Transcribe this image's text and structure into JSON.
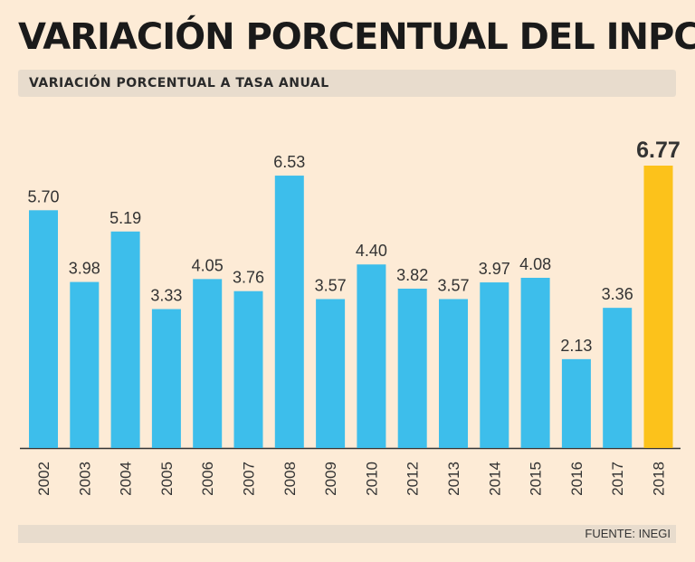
{
  "header": {
    "title": "VARIACIÓN PORCENTUAL DEL INPC",
    "subtitle": "VARIACIÓN PORCENTUAL A TASA ANUAL"
  },
  "footer": {
    "source": "FUENTE: INEGI"
  },
  "colors": {
    "bar": "#3dbeeb",
    "highlight": "#fcc21b",
    "axis": "#333333",
    "text": "#333333"
  },
  "chart_data": {
    "type": "bar",
    "title": "VARIACIÓN PORCENTUAL DEL INPC",
    "subtitle": "VARIACIÓN PORCENTUAL A TASA ANUAL",
    "xlabel": "",
    "ylabel": "",
    "categories": [
      "2002",
      "2003",
      "2004",
      "2005",
      "2006",
      "2007",
      "2008",
      "2009",
      "2010",
      "2012",
      "2013",
      "2014",
      "2015",
      "2016",
      "2017",
      "2018"
    ],
    "values": [
      5.7,
      3.98,
      5.19,
      3.33,
      4.05,
      3.76,
      6.53,
      3.57,
      4.4,
      3.82,
      3.57,
      3.97,
      4.08,
      2.13,
      3.36,
      6.77
    ],
    "labels": [
      "5.70",
      "3.98",
      "5.19",
      "3.33",
      "4.05",
      "3.76",
      "6.53",
      "3.57",
      "4.40",
      "3.82",
      "3.57",
      "3.97",
      "4.08",
      "2.13",
      "3.36",
      "6.77"
    ],
    "highlight_index": 15,
    "ylim": [
      0,
      6.77
    ],
    "grid": false
  }
}
